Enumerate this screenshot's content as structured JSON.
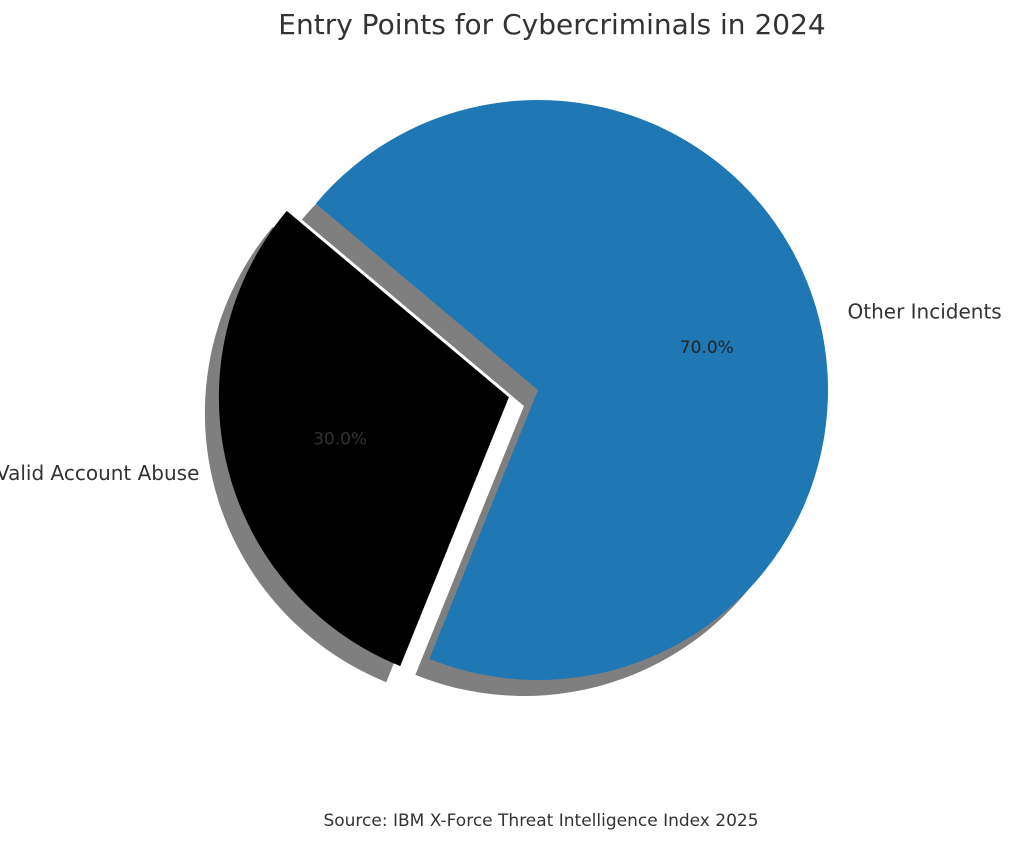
{
  "chart_data": {
    "type": "pie",
    "title": "Entry Points for Cybercriminals in 2024",
    "slices": [
      {
        "label": "Valid Account Abuse",
        "value": 30.0,
        "pct_label": "30.0%",
        "color": "#000000",
        "pct_color": "#333333",
        "exploded": true
      },
      {
        "label": "Other Incidents",
        "value": 70.0,
        "pct_label": "70.0%",
        "color": "#1f77b4",
        "pct_color": "#222222",
        "exploded": false
      }
    ],
    "shadow": true,
    "source": "Source: IBM X-Force Threat Intelligence Index 2025"
  }
}
